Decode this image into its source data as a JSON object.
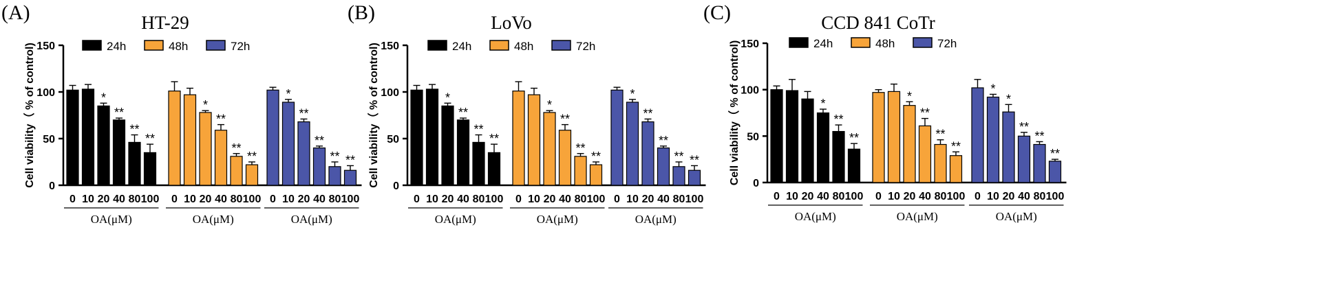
{
  "figure": {
    "colors": {
      "24h": "#000000",
      "48h": "#F7A43A",
      "72h": "#4B56A8",
      "axis": "#000000"
    }
  },
  "chart_data": [
    {
      "panel_label": "(A)",
      "type": "bar",
      "title": "HT-29",
      "ylabel": "Cell viability（ % of control)",
      "ylim": [
        0,
        150
      ],
      "yticks": [
        "0",
        "50",
        "100",
        "150"
      ],
      "legend": [
        "24h",
        "48h",
        "72h"
      ],
      "categories": [
        "0",
        "10",
        "20",
        "40",
        "80",
        "100"
      ],
      "group_xlabel": "OA(μM)",
      "series": [
        {
          "name": "24h",
          "values": [
            102,
            103,
            85,
            70,
            46,
            35
          ],
          "errors": [
            5,
            5,
            3,
            2,
            8,
            9
          ],
          "sig": [
            "",
            "",
            "*",
            "**",
            "**",
            "**"
          ]
        },
        {
          "name": "48h",
          "values": [
            101,
            97,
            78,
            59,
            31,
            22
          ],
          "errors": [
            10,
            7,
            2,
            6,
            3,
            3
          ],
          "sig": [
            "",
            "",
            "*",
            "**",
            "**",
            "**"
          ]
        },
        {
          "name": "72h",
          "values": [
            102,
            89,
            68,
            40,
            20,
            16
          ],
          "errors": [
            3,
            3,
            3,
            2,
            5,
            5
          ],
          "sig": [
            "",
            "*",
            "**",
            "**",
            "**",
            "**"
          ]
        }
      ]
    },
    {
      "panel_label": "(B)",
      "type": "bar",
      "title": "LoVo",
      "ylabel": "Cell viability（ % of control)",
      "ylim": [
        0,
        150
      ],
      "yticks": [
        "0",
        "50",
        "100",
        "150"
      ],
      "legend": [
        "24h",
        "48h",
        "72h"
      ],
      "categories": [
        "0",
        "10",
        "20",
        "40",
        "80",
        "100"
      ],
      "group_xlabel": "OA(μM)",
      "series": [
        {
          "name": "24h",
          "values": [
            102,
            103,
            85,
            70,
            46,
            35
          ],
          "errors": [
            5,
            5,
            3,
            2,
            8,
            9
          ],
          "sig": [
            "",
            "",
            "*",
            "**",
            "**",
            "**"
          ]
        },
        {
          "name": "48h",
          "values": [
            101,
            97,
            78,
            59,
            31,
            22
          ],
          "errors": [
            10,
            7,
            2,
            6,
            3,
            3
          ],
          "sig": [
            "",
            "",
            "*",
            "**",
            "**",
            "**"
          ]
        },
        {
          "name": "72h",
          "values": [
            102,
            89,
            68,
            40,
            20,
            16
          ],
          "errors": [
            3,
            3,
            3,
            2,
            5,
            5
          ],
          "sig": [
            "",
            "*",
            "**",
            "**",
            "**",
            "**"
          ]
        }
      ]
    },
    {
      "panel_label": "(C)",
      "type": "bar",
      "title": "CCD 841 CoTr",
      "ylabel": "Cell viability（ % of control)",
      "ylim": [
        0,
        150
      ],
      "yticks": [
        "0",
        "50",
        "100",
        "150"
      ],
      "legend": [
        "24h",
        "48h",
        "72h"
      ],
      "categories": [
        "0",
        "10",
        "20",
        "40",
        "80",
        "100"
      ],
      "group_xlabel": "OA(μM)",
      "series": [
        {
          "name": "24h",
          "values": [
            100,
            99,
            90,
            75,
            55,
            36
          ],
          "errors": [
            4,
            12,
            8,
            4,
            7,
            6
          ],
          "sig": [
            "",
            "",
            "",
            "*",
            "**",
            "**"
          ]
        },
        {
          "name": "48h",
          "values": [
            97,
            98,
            83,
            61,
            41,
            29
          ],
          "errors": [
            3,
            8,
            4,
            8,
            5,
            4
          ],
          "sig": [
            "",
            "",
            "*",
            "**",
            "**",
            "**"
          ]
        },
        {
          "name": "72h",
          "values": [
            102,
            92,
            76,
            50,
            41,
            23
          ],
          "errors": [
            9,
            3,
            8,
            4,
            3,
            2
          ],
          "sig": [
            "",
            "*",
            "*",
            "**",
            "**",
            "**"
          ]
        }
      ]
    }
  ]
}
